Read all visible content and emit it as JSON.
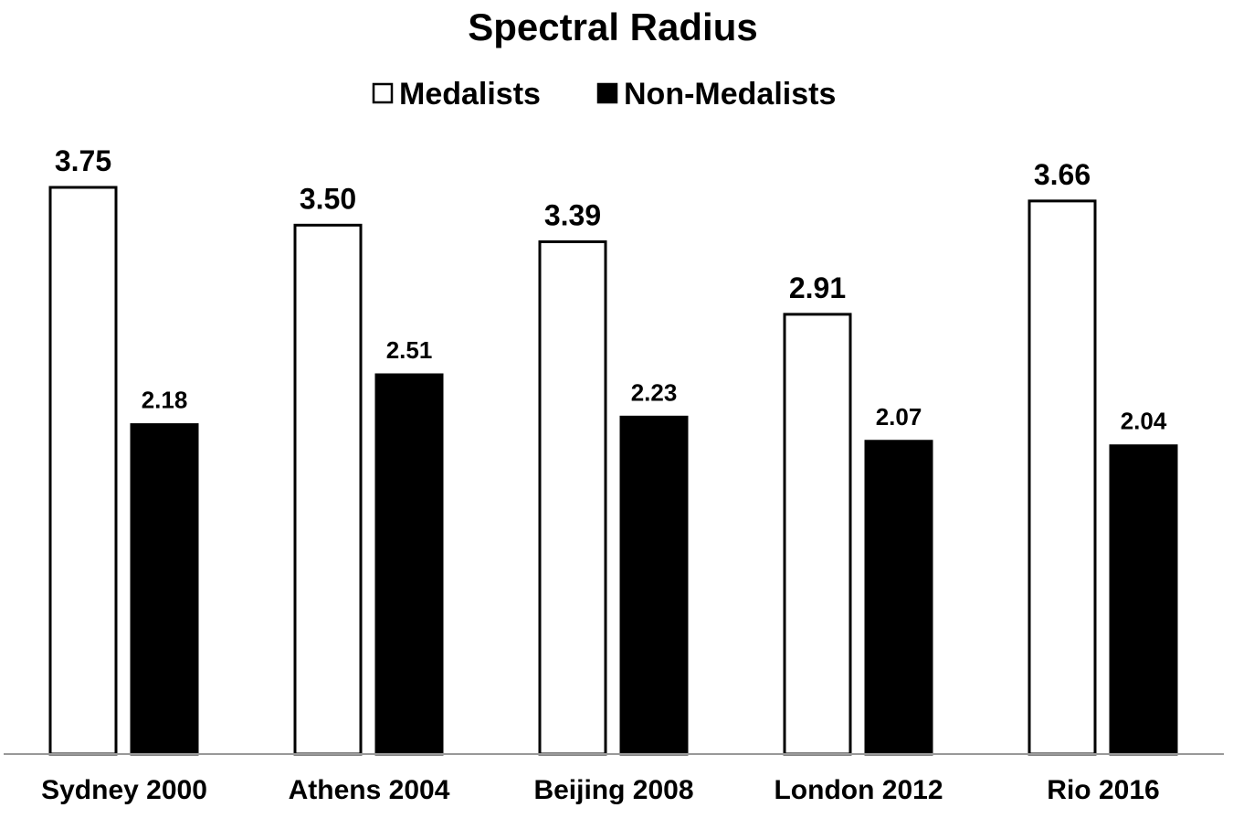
{
  "chart_data": {
    "type": "bar",
    "title": "Spectral Radius",
    "xlabel": "",
    "ylabel": "",
    "categories": [
      "Sydney 2000",
      "Athens 2004",
      "Beijing 2008",
      "London 2012",
      "Rio 2016"
    ],
    "series": [
      {
        "name": "Medalists",
        "values": [
          3.75,
          3.5,
          3.39,
          2.91,
          3.66
        ],
        "labels": [
          "3.75",
          "3.50",
          "3.39",
          "2.91",
          "3.66"
        ],
        "color": "#ffffff"
      },
      {
        "name": "Non-Medalists",
        "values": [
          2.18,
          2.51,
          2.23,
          2.07,
          2.04
        ],
        "labels": [
          "2.18",
          "2.51",
          "2.23",
          "2.07",
          "2.04"
        ],
        "color": "#000000"
      }
    ],
    "ylim": [
      0,
      3.75
    ],
    "grid": false,
    "legend_position": "top"
  }
}
